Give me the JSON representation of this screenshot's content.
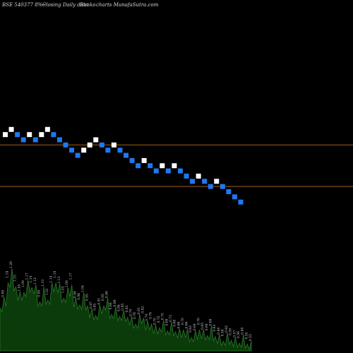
{
  "header": {
    "symbol": "BSE 540377 8%~",
    "subtitle": "Closing Daily data",
    "chart_name": "Renko",
    "site": "charts MunafaSutra.com"
  },
  "colors": {
    "background": "#000000",
    "up_brick": "#ffffff",
    "down_brick": "#1e78f0",
    "level_line": "#a0601a",
    "volume_fill": "#0b3a0b",
    "volume_stroke": "#2a7a2a"
  },
  "chart_data": {
    "type": "renko",
    "title": "BSE 540377 8%~ Closing Daily data Renko charts MunafaSutra.com",
    "bricks": {
      "direction": [
        "up",
        "up",
        "down",
        "down",
        "up",
        "down",
        "up",
        "up",
        "down",
        "down",
        "down",
        "down",
        "down",
        "up",
        "up",
        "up",
        "down",
        "down",
        "up",
        "down",
        "down",
        "down",
        "down",
        "up",
        "down",
        "down",
        "up",
        "down",
        "up",
        "down",
        "down",
        "down",
        "up",
        "down",
        "down",
        "up",
        "down",
        "down",
        "down",
        "down"
      ],
      "level_start": 0
    },
    "horizontal_levels": [
      {
        "name": "upper",
        "brick_level": -1
      },
      {
        "name": "lower",
        "brick_level": -9
      }
    ],
    "volume": {
      "labels": [
        "0.93",
        "0.99",
        "1.19",
        "1.29",
        "1.15",
        "1.05",
        "1.09",
        "1.17",
        "1.14",
        "1.12",
        "0.99",
        "1.10",
        "1.01",
        "1.14",
        "1.19",
        "1.13",
        "1.03",
        "1.09",
        "1.17",
        "0.98",
        "0.96",
        "1.04",
        "0.95",
        "0.87",
        "0.85",
        "0.91",
        "0.95",
        "0.98",
        "0.86",
        "0.89",
        "0.84",
        "0.85",
        "0.83",
        "0.79",
        "0.76",
        "0.81",
        "0.82",
        "0.74",
        "0.76",
        "0.70",
        "0.72",
        "0.75",
        "0.69",
        "0.73",
        "0.68",
        "0.66",
        "0.70",
        "0.66",
        "0.62",
        "0.64",
        "0.70",
        "0.65",
        "0.64",
        "0.69",
        "0.63",
        "0.60",
        "0.58",
        "0.62",
        "0.59",
        "0.57",
        "0.56",
        "0.60",
        "0.55",
        "0.53"
      ]
    }
  }
}
